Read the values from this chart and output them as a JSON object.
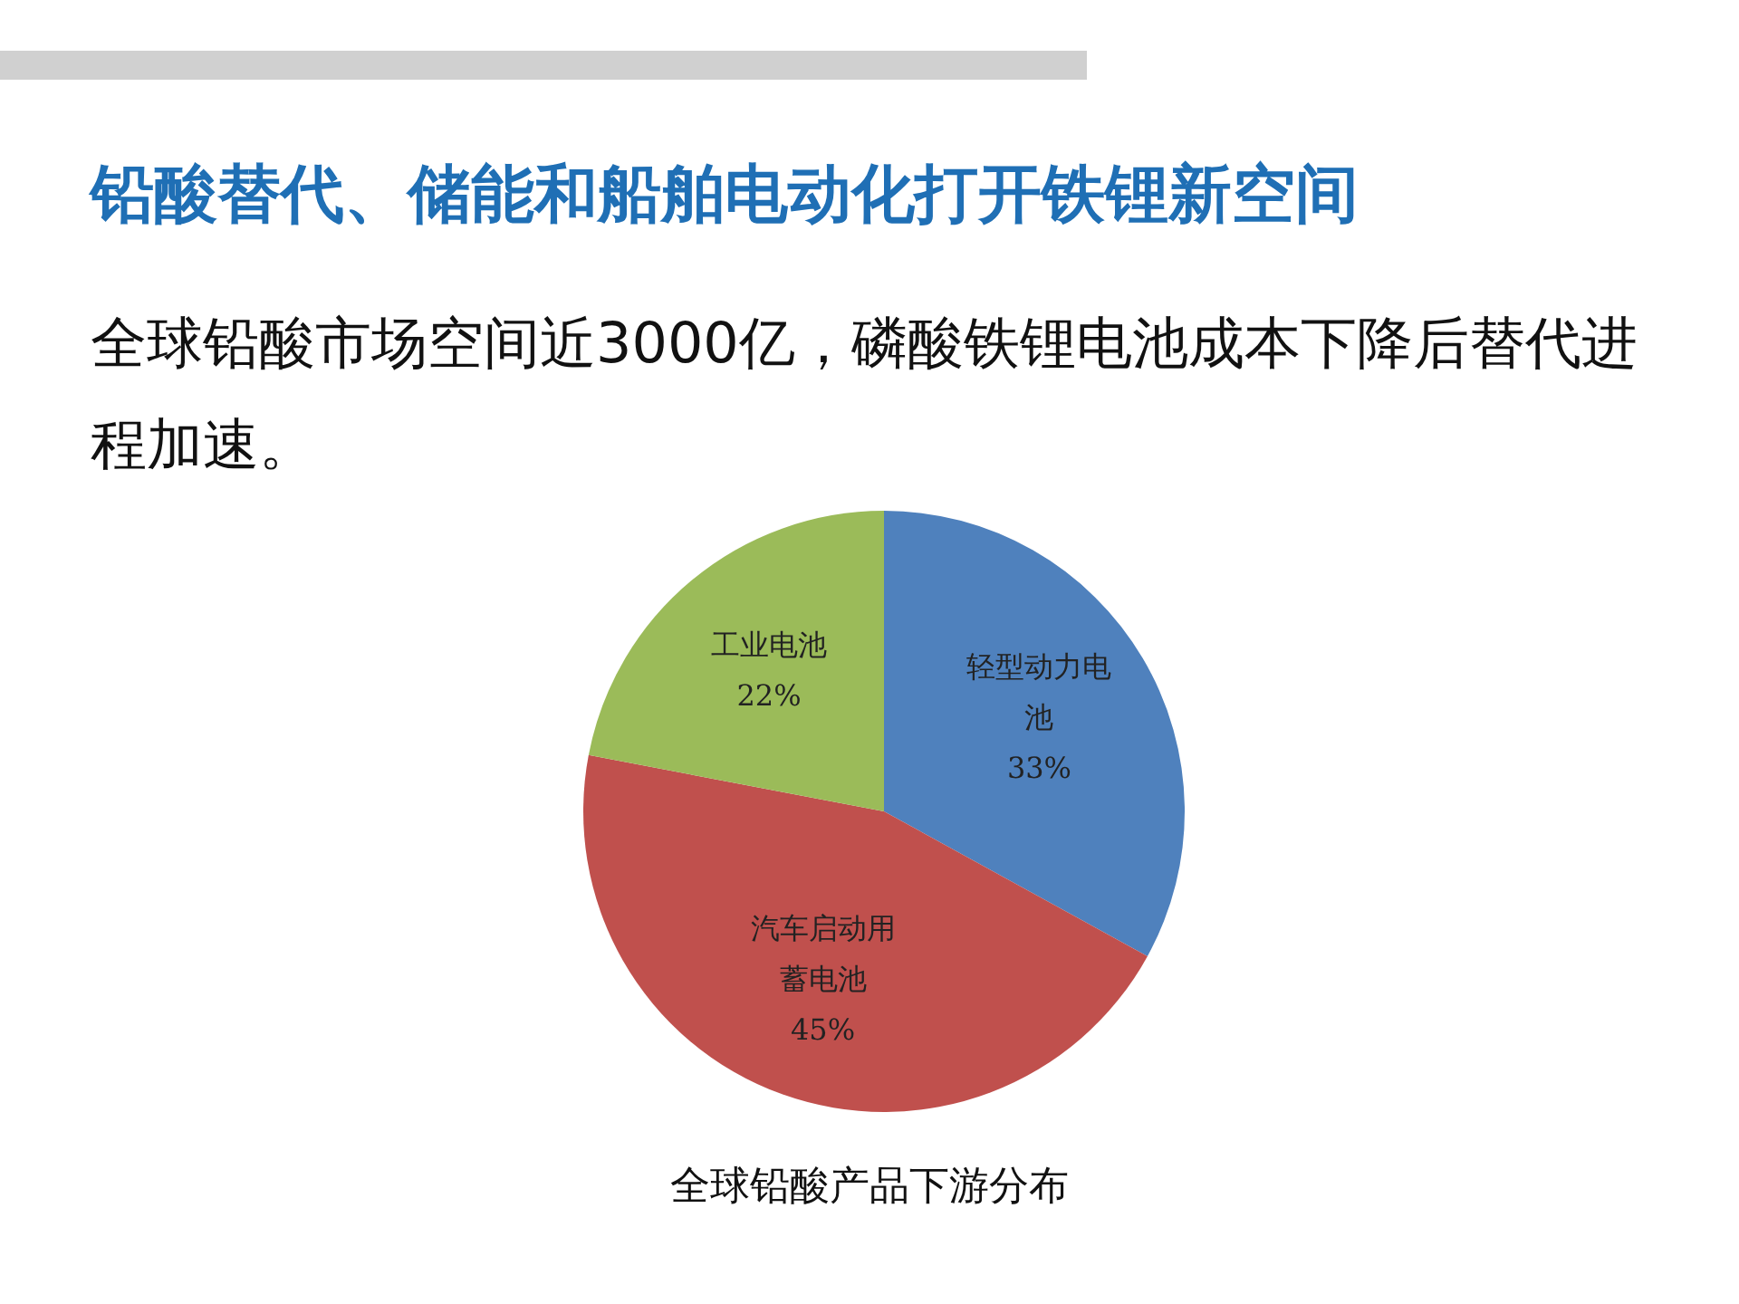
{
  "chart_data": {
    "type": "pie",
    "title": "铅酸替代、储能和船舶电动化打开铁锂新空间",
    "subtitle": "全球铅酸市场空间近3000亿，磷酸铁锂电池成本下降后替代进程加速。",
    "categories": [
      "轻型动力电池",
      "汽车启动用蓄电池",
      "工业电池"
    ],
    "values": [
      33,
      45,
      22
    ],
    "colors": [
      "#4f81bd",
      "#c0504d",
      "#9bbb59"
    ],
    "value_labels": [
      "33%",
      "45%",
      "22%"
    ],
    "legend": false,
    "annotations": [
      "全球铅酸产品下游分布"
    ]
  }
}
